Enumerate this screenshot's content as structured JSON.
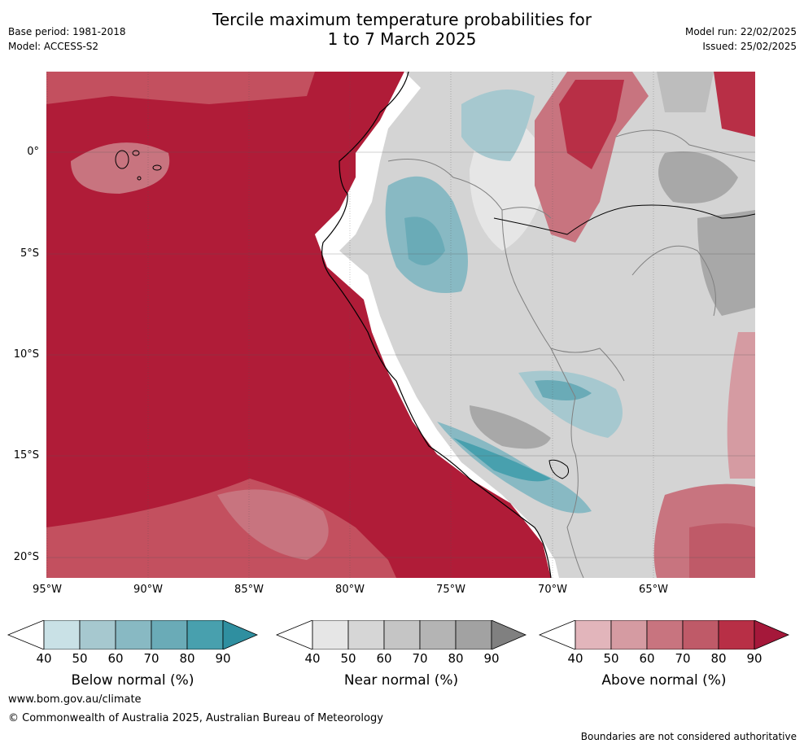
{
  "header": {
    "title_line1": "Tercile maximum temperature probabilities for",
    "title_line2": "1 to 7 March 2025",
    "base_period": "Base period: 1981-2018",
    "model": "Model: ACCESS-S2",
    "model_run": "Model run: 22/02/2025",
    "issued": "Issued: 25/02/2025"
  },
  "map": {
    "lat_labels": [
      "0°",
      "5°S",
      "10°S",
      "15°S",
      "20°S"
    ],
    "lon_labels": [
      "95°W",
      "90°W",
      "85°W",
      "80°W",
      "75°W",
      "70°W",
      "65°W"
    ],
    "colors": {
      "ocean_above": "#b01c38",
      "land_near": "#d4d4d4",
      "below": "#6fb0bb"
    }
  },
  "colorbars": [
    {
      "title": "Below normal (%)",
      "ticks": [
        "40",
        "50",
        "60",
        "70",
        "80",
        "90"
      ],
      "colors": [
        "#ffffff",
        "#c9e1e6",
        "#a6c8cf",
        "#88b9c3",
        "#6aabb7",
        "#48a0ae",
        "#2f8fa0"
      ]
    },
    {
      "title": "Near normal (%)",
      "ticks": [
        "40",
        "50",
        "60",
        "70",
        "80",
        "90"
      ],
      "colors": [
        "#ffffff",
        "#e6e6e6",
        "#d6d6d6",
        "#c5c5c5",
        "#b4b4b4",
        "#a2a2a2",
        "#808080"
      ]
    },
    {
      "title": "Above normal (%)",
      "ticks": [
        "40",
        "50",
        "60",
        "70",
        "80",
        "90"
      ],
      "colors": [
        "#ffffff",
        "#e2b5bb",
        "#d59ba2",
        "#c8747f",
        "#bf5a68",
        "#b82f46",
        "#a5183a"
      ]
    }
  ],
  "footer": {
    "website": "www.bom.gov.au/climate",
    "copyright": "© Commonwealth of Australia 2025, Australian Bureau of Meteorology",
    "disclaimer": "Boundaries are not considered authoritative"
  }
}
